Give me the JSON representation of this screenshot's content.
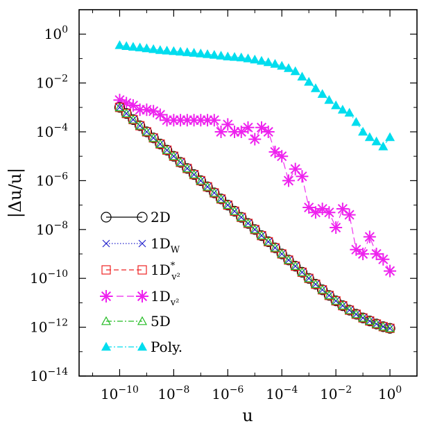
{
  "chart_data": {
    "type": "line",
    "xlabel": "u",
    "ylabel": "|Δu/u|",
    "x_scale": "log",
    "y_scale": "log",
    "xlim": [
      3.16e-12,
      10
    ],
    "ylim": [
      1e-14,
      10
    ],
    "x_ticks": [
      {
        "value": 1e-10,
        "base": "10",
        "exp": "−10"
      },
      {
        "value": 1e-08,
        "base": "10",
        "exp": "−8"
      },
      {
        "value": 1e-06,
        "base": "10",
        "exp": "−6"
      },
      {
        "value": 0.0001,
        "base": "10",
        "exp": "−4"
      },
      {
        "value": 0.01,
        "base": "10",
        "exp": "−2"
      },
      {
        "value": 1,
        "base": "10",
        "exp": "0"
      }
    ],
    "y_ticks": [
      {
        "value": 1e-14,
        "base": "10",
        "exp": "−14"
      },
      {
        "value": 1e-12,
        "base": "10",
        "exp": "−12"
      },
      {
        "value": 1e-10,
        "base": "10",
        "exp": "−10"
      },
      {
        "value": 1e-08,
        "base": "10",
        "exp": "−8"
      },
      {
        "value": 1e-06,
        "base": "10",
        "exp": "−6"
      },
      {
        "value": 0.0001,
        "base": "10",
        "exp": "−4"
      },
      {
        "value": 0.01,
        "base": "10",
        "exp": "−2"
      },
      {
        "value": 1,
        "base": "10",
        "exp": "0"
      }
    ],
    "legend_position": "bottom-left",
    "x": [
      1e-10,
      1.778e-10,
      3.162e-10,
      5.623e-10,
      1e-09,
      1.778e-09,
      3.162e-09,
      5.623e-09,
      1e-08,
      1.778e-08,
      3.162e-08,
      5.623e-08,
      1e-07,
      1.778e-07,
      3.162e-07,
      5.623e-07,
      1e-06,
      1.778e-06,
      3.162e-06,
      5.623e-06,
      1e-05,
      1.778e-05,
      3.162e-05,
      5.623e-05,
      0.0001,
      0.0001778,
      0.0003162,
      0.0005623,
      0.001,
      0.001778,
      0.003162,
      0.005623,
      0.01,
      0.01778,
      0.03162,
      0.05623,
      0.1,
      0.1778,
      0.3162,
      0.5623,
      1
    ],
    "series": [
      {
        "name": "2D",
        "label_main": "2D",
        "label_sub": "",
        "label_sup": "",
        "marker": "circle",
        "color": "#000000",
        "dash": "",
        "point_size": 7,
        "marker_width": 1.2,
        "values": [
          0.001,
          0.000562,
          0.000316,
          0.000178,
          0.0001,
          5.62e-05,
          3.16e-05,
          1.78e-05,
          1e-05,
          5.62e-06,
          3.16e-06,
          1.78e-06,
          1e-06,
          5.62e-07,
          3.16e-07,
          1.78e-07,
          1e-07,
          5.62e-08,
          3.16e-08,
          1.78e-08,
          1e-08,
          5.62e-09,
          3.16e-09,
          1.78e-09,
          1e-09,
          5.62e-10,
          3.16e-10,
          1.78e-10,
          1e-10,
          5.75e-11,
          3.39e-11,
          2e-11,
          1.2e-11,
          7.6e-12,
          5e-12,
          3.4e-12,
          2.4e-12,
          1.8e-12,
          1.35e-12,
          1.05e-12,
          9e-13
        ]
      },
      {
        "name": "1DW",
        "label_main": "1D",
        "label_sub": "W",
        "label_sup": "",
        "marker": "cross",
        "color": "#2222cc",
        "dash": "1.5 2.5",
        "point_size": 5,
        "marker_width": 1.2,
        "values": [
          0.001,
          0.000562,
          0.000316,
          0.000178,
          0.0001,
          5.62e-05,
          3.16e-05,
          1.78e-05,
          1e-05,
          5.62e-06,
          3.16e-06,
          1.78e-06,
          1e-06,
          5.62e-07,
          3.16e-07,
          1.78e-07,
          1e-07,
          5.62e-08,
          3.16e-08,
          1.78e-08,
          1e-08,
          5.62e-09,
          3.16e-09,
          1.78e-09,
          1e-09,
          5.62e-10,
          3.16e-10,
          1.78e-10,
          1e-10,
          5.75e-11,
          3.39e-11,
          2e-11,
          1.2e-11,
          7.6e-12,
          5e-12,
          3.4e-12,
          2.4e-12,
          1.8e-12,
          1.35e-12,
          1.05e-12,
          9e-13
        ]
      },
      {
        "name": "1D*v2",
        "label_main": "1D",
        "label_sub": "v²",
        "label_sup": "*",
        "marker": "square",
        "color": "#ee2222",
        "dash": "7 4",
        "point_size": 6,
        "marker_width": 1.2,
        "values": [
          0.001,
          0.000562,
          0.000316,
          0.000178,
          0.0001,
          5.62e-05,
          3.16e-05,
          1.78e-05,
          1e-05,
          5.62e-06,
          3.16e-06,
          1.78e-06,
          1e-06,
          5.62e-07,
          3.16e-07,
          1.78e-07,
          1e-07,
          5.62e-08,
          3.16e-08,
          1.78e-08,
          1e-08,
          5.62e-09,
          3.16e-09,
          1.78e-09,
          1e-09,
          5.62e-10,
          3.16e-10,
          1.78e-10,
          1e-10,
          5.75e-11,
          3.39e-11,
          2e-11,
          1.2e-11,
          7.6e-12,
          5e-12,
          3.4e-12,
          2.4e-12,
          1.8e-12,
          1.35e-12,
          1.05e-12,
          9e-13
        ]
      },
      {
        "name": "1Dv2",
        "label_main": "1D",
        "label_sub": "v²",
        "label_sup": "",
        "marker": "star",
        "color": "#ee22ee",
        "dash": "10 5",
        "point_size": 9,
        "marker_width": 2,
        "values": [
          0.002,
          0.0015,
          0.0012,
          0.0008,
          0.0008,
          0.0007,
          0.0005,
          0.0003,
          0.0003,
          0.0003,
          0.0003,
          0.0003,
          0.0003,
          0.0003,
          0.0003,
          0.0001,
          0.0002,
          0.0001,
          0.0001,
          0.00015,
          5e-05,
          0.00015,
          0.0001,
          1.5e-05,
          1e-05,
          1e-06,
          3e-06,
          1.5e-06,
          8e-08,
          5e-08,
          7e-08,
          5e-08,
          1.2e-08,
          7e-08,
          4e-08,
          1.5e-09,
          1e-09,
          5e-09,
          1e-09,
          6e-10,
          2e-10
        ]
      },
      {
        "name": "5D",
        "label_main": "5D",
        "label_sub": "",
        "label_sup": "",
        "marker": "triangle-open",
        "color": "#22bb22",
        "dash": "8 3 2 3",
        "point_size": 6,
        "marker_width": 1.2,
        "values": [
          0.001,
          0.000562,
          0.000316,
          0.000178,
          0.0001,
          5.62e-05,
          3.16e-05,
          1.78e-05,
          1e-05,
          5.62e-06,
          3.16e-06,
          1.78e-06,
          1e-06,
          5.62e-07,
          3.16e-07,
          1.78e-07,
          1e-07,
          5.62e-08,
          3.16e-08,
          1.78e-08,
          1e-08,
          5.62e-09,
          3.16e-09,
          1.78e-09,
          1e-09,
          5.62e-10,
          3.16e-10,
          1.78e-10,
          1e-10,
          5.75e-11,
          3.39e-11,
          2e-11,
          1.2e-11,
          7.6e-12,
          5e-12,
          3.4e-12,
          2.4e-12,
          1.8e-12,
          1.35e-12,
          1.05e-12,
          9e-13
        ]
      },
      {
        "name": "Poly.",
        "label_main": "Poly.",
        "label_sub": "",
        "label_sup": "",
        "marker": "triangle-filled",
        "color": "#00ddee",
        "dash": "8 3 2 3",
        "point_size": 6,
        "marker_width": 1.2,
        "values": [
          0.35,
          0.32,
          0.3,
          0.28,
          0.26,
          0.24,
          0.22,
          0.21,
          0.2,
          0.19,
          0.18,
          0.17,
          0.16,
          0.15,
          0.14,
          0.13,
          0.12,
          0.115,
          0.11,
          0.1,
          0.09,
          0.08,
          0.07,
          0.06,
          0.05,
          0.04,
          0.03,
          0.018,
          0.011,
          0.006,
          0.0035,
          0.002,
          0.0012,
          0.0008,
          0.0006,
          0.00025,
          0.0001,
          6e-05,
          4e-05,
          2.5e-05,
          6e-05
        ]
      }
    ]
  }
}
